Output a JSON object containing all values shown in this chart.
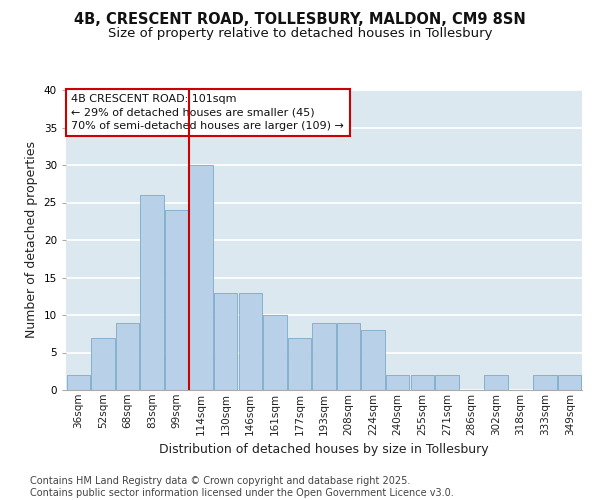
{
  "title_line1": "4B, CRESCENT ROAD, TOLLESBURY, MALDON, CM9 8SN",
  "title_line2": "Size of property relative to detached houses in Tollesbury",
  "xlabel": "Distribution of detached houses by size in Tollesbury",
  "ylabel": "Number of detached properties",
  "categories": [
    "36sqm",
    "52sqm",
    "68sqm",
    "83sqm",
    "99sqm",
    "114sqm",
    "130sqm",
    "146sqm",
    "161sqm",
    "177sqm",
    "193sqm",
    "208sqm",
    "224sqm",
    "240sqm",
    "255sqm",
    "271sqm",
    "286sqm",
    "302sqm",
    "318sqm",
    "333sqm",
    "349sqm"
  ],
  "values": [
    2,
    7,
    9,
    26,
    24,
    30,
    13,
    13,
    10,
    7,
    9,
    9,
    8,
    2,
    2,
    2,
    0,
    2,
    0,
    2,
    2
  ],
  "bar_color": "#b8d0e8",
  "bar_edge_color": "#7aaac8",
  "plot_bg_color": "#dce8f0",
  "fig_bg_color": "#ffffff",
  "grid_color": "#ffffff",
  "red_line_x": 4.5,
  "annotation_text": "4B CRESCENT ROAD: 101sqm\n← 29% of detached houses are smaller (45)\n70% of semi-detached houses are larger (109) →",
  "annotation_box_facecolor": "#ffffff",
  "annotation_box_edgecolor": "#cc0000",
  "ylim": [
    0,
    40
  ],
  "yticks": [
    0,
    5,
    10,
    15,
    20,
    25,
    30,
    35,
    40
  ],
  "footer_text": "Contains HM Land Registry data © Crown copyright and database right 2025.\nContains public sector information licensed under the Open Government Licence v3.0.",
  "title_fontsize": 10.5,
  "subtitle_fontsize": 9.5,
  "axis_label_fontsize": 9,
  "tick_fontsize": 7.5,
  "annotation_fontsize": 8,
  "footer_fontsize": 7
}
